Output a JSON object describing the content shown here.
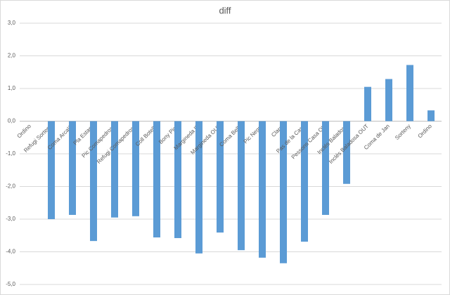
{
  "chart_data": {
    "type": "bar",
    "title": "diff",
    "categories": [
      "Ordino",
      "Refugi Sorteny",
      "Coma Arcalís",
      "Pla Estany",
      "Pic Comapedrosa",
      "Refugi Comapedrosa",
      "Coll Botella",
      "Bony Pica",
      "Margineda IN",
      "Margineda OUT",
      "Coma Bella",
      "Pic Negre",
      "Claror",
      "Pas de la Casa",
      "Pessons Casa Ole",
      "Inclés Baladosa",
      "Inclés Baladosa OUT",
      "Coma de Jan",
      "Sorteny",
      "Ordino"
    ],
    "values": [
      null,
      -3.0,
      -2.87,
      -3.67,
      -2.95,
      -2.91,
      -3.56,
      -3.58,
      -4.05,
      -3.41,
      -3.95,
      -4.18,
      -4.35,
      -3.69,
      -2.87,
      -1.92,
      1.05,
      1.29,
      1.72,
      0.33
    ],
    "color": "#5b9bd5",
    "ylim": [
      -5,
      3
    ],
    "yticks": [
      {
        "value": -5,
        "label": "-5,0"
      },
      {
        "value": -4,
        "label": "-4,0"
      },
      {
        "value": -3,
        "label": "-3,0"
      },
      {
        "value": -2,
        "label": "-2,0"
      },
      {
        "value": -1,
        "label": "-1,0"
      },
      {
        "value": 0,
        "label": "0,0"
      },
      {
        "value": 1,
        "label": "1,0"
      },
      {
        "value": 2,
        "label": "2,0"
      },
      {
        "value": 3,
        "label": "3,0"
      }
    ],
    "grid": true
  }
}
